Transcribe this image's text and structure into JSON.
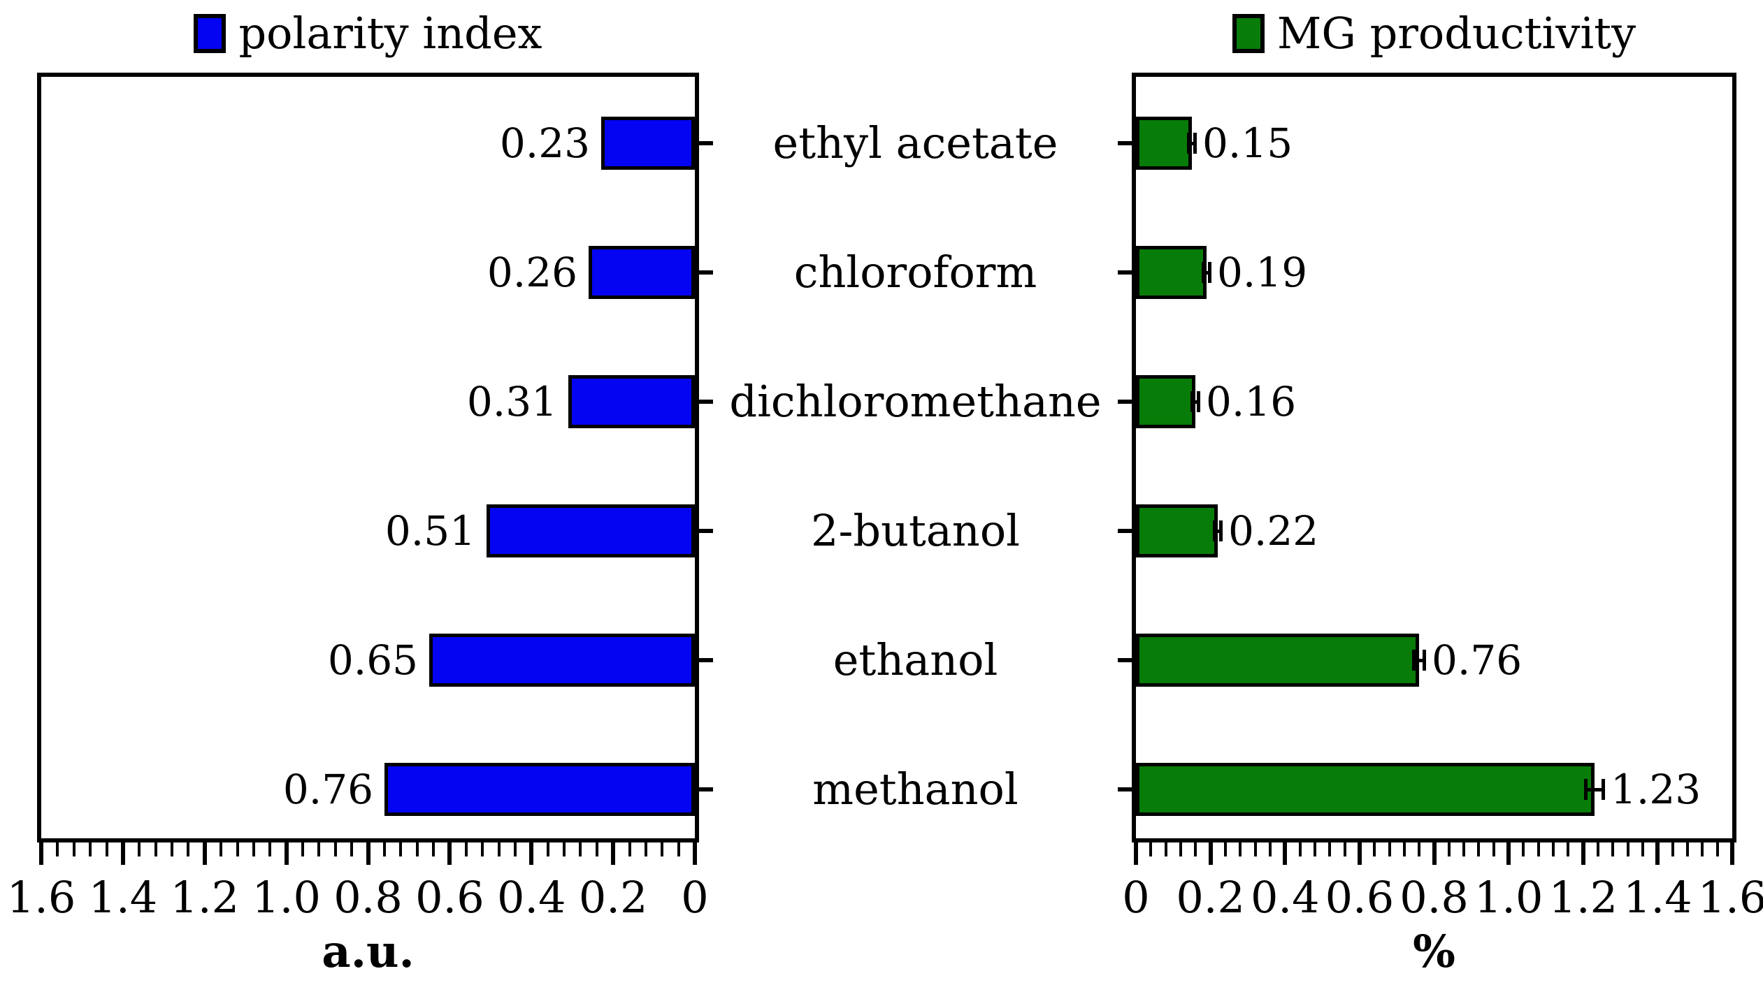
{
  "categories": [
    "ethyl acetate",
    "chloroform",
    "dichloromethane",
    "2-butanol",
    "ethanol",
    "methanol"
  ],
  "chart_data": [
    {
      "type": "bar",
      "orientation": "horizontal",
      "panel": "left",
      "series_name": "polarity index",
      "color": "#0404f2",
      "bar_border_color": "#000000",
      "categories": [
        "ethyl acetate",
        "chloroform",
        "dichloromethane",
        "2-butanol",
        "ethanol",
        "methanol"
      ],
      "values": [
        0.23,
        0.26,
        0.31,
        0.51,
        0.65,
        0.76
      ],
      "value_labels": [
        "0.23",
        "0.26",
        "0.31",
        "0.51",
        "0.65",
        "0.76"
      ],
      "xlabel": "a.u.",
      "xlim": [
        1.6,
        0
      ],
      "axis_reversed": true,
      "x_tick_labels": [
        "1.6",
        "1.4",
        "1.2",
        "1.0",
        "0.8",
        "0.6",
        "0.4",
        "0.2",
        "0"
      ],
      "major_tick_step": 0.2,
      "minor_tick_step": 0.04,
      "grid": false,
      "legend_position": "top-center"
    },
    {
      "type": "bar",
      "orientation": "horizontal",
      "panel": "right",
      "series_name": "MG productivity",
      "color": "#087c08",
      "bar_border_color": "#000000",
      "categories": [
        "ethyl acetate",
        "chloroform",
        "dichloromethane",
        "2-butanol",
        "ethanol",
        "methanol"
      ],
      "values": [
        0.15,
        0.19,
        0.16,
        0.22,
        0.76,
        1.23
      ],
      "errors": [
        0.01,
        0.01,
        0.01,
        0.01,
        0.015,
        0.025
      ],
      "value_labels": [
        "0.15",
        "0.19",
        "0.16",
        "0.22",
        "0.76",
        "1.23"
      ],
      "xlabel": "%",
      "xlim": [
        0,
        1.6
      ],
      "axis_reversed": false,
      "x_tick_labels": [
        "0",
        "0.2",
        "0.4",
        "0.6",
        "0.8",
        "1.0",
        "1.2",
        "1.4",
        "1.6"
      ],
      "major_tick_step": 0.2,
      "minor_tick_step": 0.04,
      "grid": false,
      "legend_position": "top-center"
    }
  ]
}
